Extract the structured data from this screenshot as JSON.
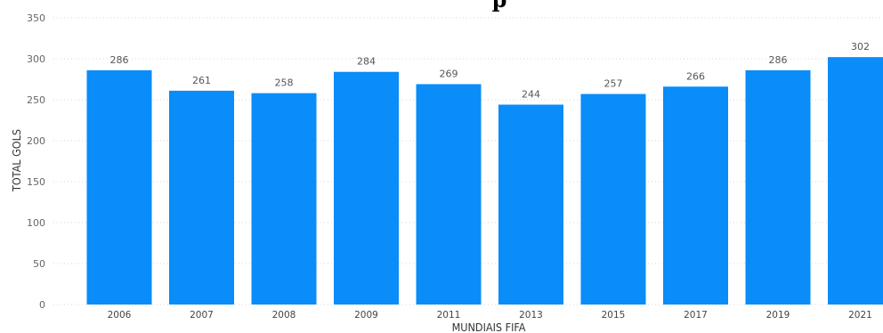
{
  "chart_data": {
    "type": "bar",
    "title": "p",
    "xlabel": "MUNDIAIS FIFA",
    "ylabel": "TOTAL GOLS",
    "categories": [
      "2006",
      "2007",
      "2008",
      "2009",
      "2011",
      "2013",
      "2015",
      "2017",
      "2019",
      "2021"
    ],
    "values": [
      286,
      261,
      258,
      284,
      269,
      244,
      257,
      266,
      286,
      302
    ],
    "ylim": [
      0,
      350
    ],
    "yticks": [
      0,
      50,
      100,
      150,
      200,
      250,
      300,
      350
    ],
    "grid": true,
    "data_labels": true,
    "bar_color": "#0a8cf9"
  }
}
